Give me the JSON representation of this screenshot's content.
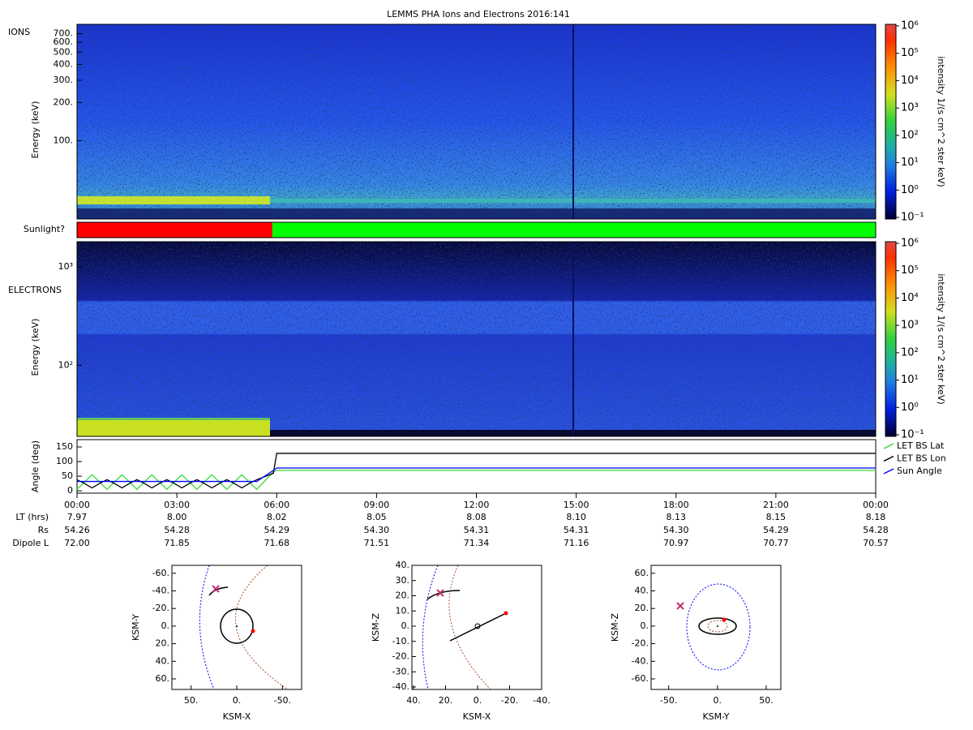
{
  "title": "LEMMS PHA Ions and Electrons  2016:141",
  "chart_data": [
    {
      "type": "spectrogram",
      "label": "IONS",
      "ylabel": "Energy (keV)",
      "log_y": true,
      "ylim": [
        24,
        830
      ],
      "yticks": [
        {
          "value": 100,
          "label": "100."
        },
        {
          "value": 200,
          "label": "200."
        },
        {
          "value": 300,
          "label": "300."
        },
        {
          "value": 400,
          "label": "400."
        },
        {
          "value": 500,
          "label": "500."
        },
        {
          "value": 600,
          "label": "600."
        },
        {
          "value": 700,
          "label": "700."
        }
      ],
      "colorbar": {
        "label": "intensity 1/(s cm^2 ster keV)",
        "log": true,
        "lim": [
          0.1,
          1000000
        ],
        "ticks": [
          {
            "value": 0.1,
            "label": "10⁻¹"
          },
          {
            "value": 1,
            "label": "10⁰"
          },
          {
            "value": 10,
            "label": "10¹"
          },
          {
            "value": 100,
            "label": "10²"
          },
          {
            "value": 1000,
            "label": "10³"
          },
          {
            "value": 10000,
            "label": "10⁴"
          },
          {
            "value": 100000,
            "label": "10⁵"
          },
          {
            "value": 1000000,
            "label": "10⁶"
          }
        ]
      }
    },
    {
      "type": "spectrogram",
      "label": "ELECTRONS",
      "ylabel": "Energy (keV)",
      "log_y": true,
      "ylim": [
        19,
        1800
      ],
      "yticks": [
        {
          "value": 100,
          "label": "10²"
        },
        {
          "value": 1000,
          "label": "10³"
        }
      ],
      "colorbar": {
        "label": "intensity 1/(s cm^2 ster keV)",
        "log": true,
        "lim": [
          0.1,
          1000000
        ],
        "ticks": [
          {
            "value": 0.1,
            "label": "10⁻¹"
          },
          {
            "value": 1,
            "label": "10⁰"
          },
          {
            "value": 10,
            "label": "10¹"
          },
          {
            "value": 100,
            "label": "10²"
          },
          {
            "value": 1000,
            "label": "10³"
          },
          {
            "value": 10000,
            "label": "10⁴"
          },
          {
            "value": 100000,
            "label": "10⁵"
          },
          {
            "value": 1000000,
            "label": "10⁶"
          }
        ]
      }
    },
    {
      "type": "line",
      "ylabel": "Angle (deg)",
      "xlim": [
        0,
        24
      ],
      "ylim": [
        -8,
        175
      ],
      "yticks": [
        0,
        50,
        100,
        150
      ],
      "xticks": [
        {
          "value": 0,
          "label": "00:00"
        },
        {
          "value": 3,
          "label": "03:00"
        },
        {
          "value": 6,
          "label": "06:00"
        },
        {
          "value": 9,
          "label": "09:00"
        },
        {
          "value": 12,
          "label": "12:00"
        },
        {
          "value": 15,
          "label": "15:00"
        },
        {
          "value": 18,
          "label": "18:00"
        },
        {
          "value": 21,
          "label": "21:00"
        },
        {
          "value": 24,
          "label": "00:00"
        }
      ],
      "x": [
        0,
        0.225,
        0.45,
        0.675,
        0.9,
        1.125,
        1.35,
        1.575,
        1.8,
        2.025,
        2.25,
        2.475,
        2.7,
        2.925,
        3.15,
        3.375,
        3.6,
        3.825,
        4.05,
        4.275,
        4.5,
        4.725,
        4.95,
        5.175,
        5.4,
        5.9,
        6,
        24
      ],
      "legend": "right",
      "series": [
        {
          "name": "LET BS Lat",
          "color": "#33dd33",
          "values": [
            5,
            30,
            55,
            30,
            5,
            30,
            55,
            30,
            5,
            30,
            55,
            30,
            5,
            30,
            55,
            30,
            5,
            30,
            55,
            30,
            5,
            30,
            55,
            30,
            5,
            65,
            70,
            70
          ]
        },
        {
          "name": "LET BS Lon",
          "color": "#000000",
          "values": [
            38,
            25,
            10,
            25,
            38,
            25,
            10,
            25,
            38,
            25,
            10,
            25,
            38,
            25,
            10,
            25,
            38,
            25,
            10,
            25,
            38,
            25,
            10,
            25,
            38,
            60,
            128,
            128
          ]
        },
        {
          "name": "Sun Angle",
          "color": "#0000ff",
          "values": [
            32,
            32,
            32,
            32,
            32,
            32,
            32,
            32,
            32,
            32,
            32,
            32,
            32,
            32,
            32,
            32,
            32,
            32,
            32,
            32,
            32,
            32,
            32,
            32,
            32,
            70,
            78,
            78
          ]
        }
      ]
    }
  ],
  "sunlight": {
    "label": "Sunlight?",
    "segments": [
      {
        "start": 0,
        "end": 5.87,
        "color": "#ff0000"
      },
      {
        "start": 5.87,
        "end": 24,
        "color": "#00ff00"
      }
    ]
  },
  "ephemeris": {
    "rows": [
      {
        "label": "LT (hrs)",
        "values": [
          "7.97",
          "8.00",
          "8.02",
          "8.05",
          "8.08",
          "8.10",
          "8.13",
          "8.15",
          "8.18"
        ]
      },
      {
        "label": "Rs",
        "values": [
          "54.26",
          "54.28",
          "54.29",
          "54.30",
          "54.31",
          "54.31",
          "54.30",
          "54.29",
          "54.28"
        ]
      },
      {
        "label": "Dipole L",
        "values": [
          "72.00",
          "71.85",
          "71.68",
          "71.51",
          "71.34",
          "71.16",
          "70.97",
          "70.77",
          "70.57"
        ]
      }
    ]
  },
  "orbits": [
    {
      "xlabel": "KSM-X",
      "ylabel": "KSM-Y",
      "xlim": [
        71,
        -71
      ],
      "ylim": [
        72,
        -69
      ],
      "xticks": [
        {
          "value": 50,
          "label": "50."
        },
        {
          "value": 0,
          "label": "0."
        },
        {
          "value": -50,
          "label": "-50."
        }
      ],
      "yticks": [
        {
          "value": -60,
          "label": "-60."
        },
        {
          "value": -40,
          "label": "-40."
        },
        {
          "value": -20,
          "label": "-20."
        },
        {
          "value": 0,
          "label": "0."
        },
        {
          "value": 20,
          "label": "20."
        },
        {
          "value": 40,
          "label": "40."
        },
        {
          "value": 60,
          "label": "60."
        }
      ]
    },
    {
      "xlabel": "KSM-X",
      "ylabel": "KSM-Z",
      "xlim": [
        41,
        -40
      ],
      "ylim": [
        -41.6,
        40
      ],
      "xticks": [
        {
          "value": 40,
          "label": "40."
        },
        {
          "value": 20,
          "label": "20."
        },
        {
          "value": 0,
          "label": "0."
        },
        {
          "value": -20,
          "label": "-20."
        },
        {
          "value": -40,
          "label": "-40."
        }
      ],
      "yticks": [
        {
          "value": 40,
          "label": "40."
        },
        {
          "value": 30,
          "label": "30."
        },
        {
          "value": 20,
          "label": "20."
        },
        {
          "value": 10,
          "label": "10."
        },
        {
          "value": 0,
          "label": "0."
        },
        {
          "value": -10,
          "label": "-10."
        },
        {
          "value": -20,
          "label": "-20."
        },
        {
          "value": -30,
          "label": "-30."
        },
        {
          "value": -40,
          "label": "-40."
        }
      ]
    },
    {
      "xlabel": "KSM-Y",
      "ylabel": "KSM-Z",
      "xlim": [
        -68,
        65
      ],
      "ylim": [
        -72,
        69
      ],
      "xticks": [
        {
          "value": -50,
          "label": "-50."
        },
        {
          "value": 0,
          "label": "0."
        },
        {
          "value": 50,
          "label": "50."
        }
      ],
      "yticks": [
        {
          "value": 60,
          "label": "60."
        },
        {
          "value": 40,
          "label": "40."
        },
        {
          "value": 20,
          "label": "20."
        },
        {
          "value": 0,
          "label": "0."
        },
        {
          "value": -20,
          "label": "-20."
        },
        {
          "value": -40,
          "label": "-40."
        },
        {
          "value": -60,
          "label": "-60."
        }
      ]
    }
  ]
}
